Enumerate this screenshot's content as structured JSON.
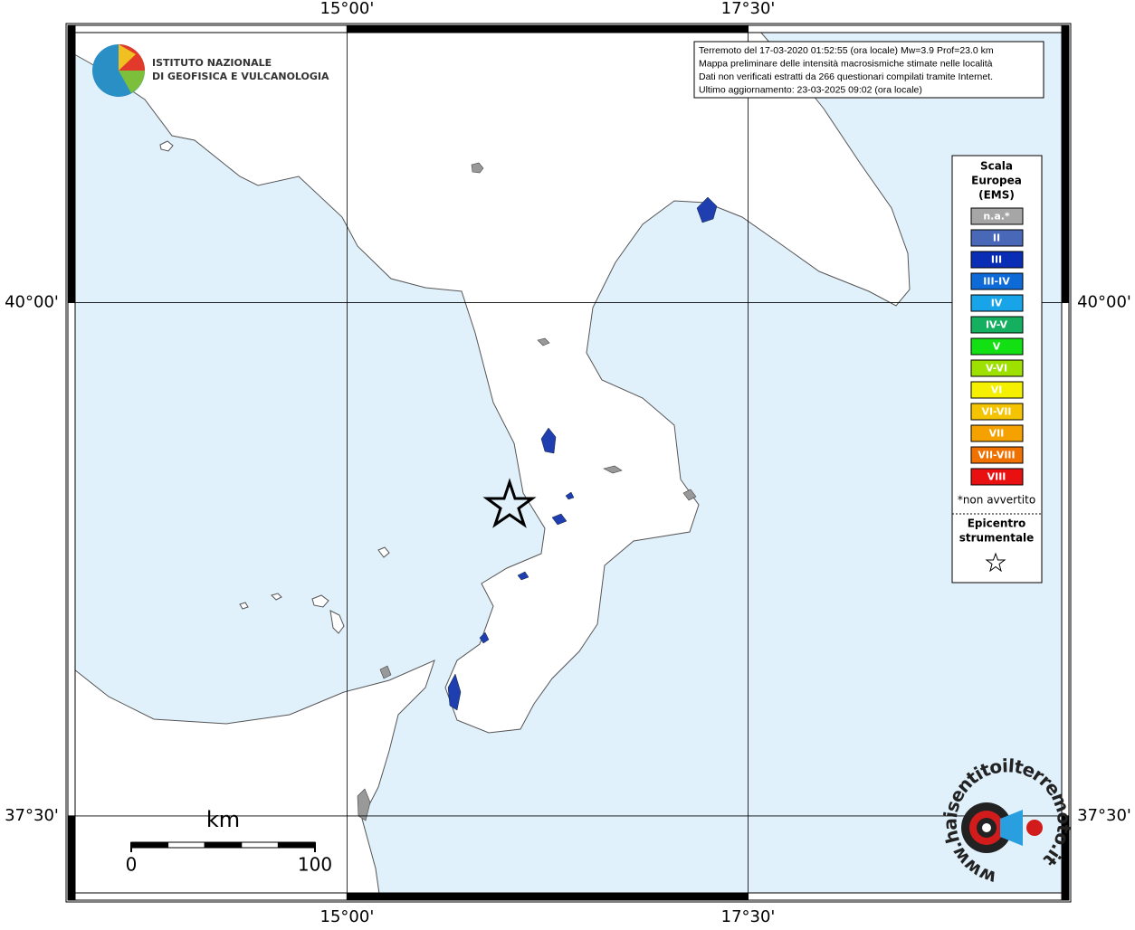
{
  "map": {
    "graticule": {
      "xlim": [
        13.26,
        19.5
      ],
      "ylim": [
        37.09,
        41.35
      ],
      "xticks": [
        {
          "value": 15,
          "label": "15°00'"
        },
        {
          "value": 17.5,
          "label": "17°30'"
        }
      ],
      "yticks": [
        {
          "value": 40,
          "label": "40°00'"
        },
        {
          "value": 37.5,
          "label": "37°30'"
        }
      ]
    },
    "info": [
      "Terremoto del 17-03-2020 01:52:55 (ora locale) Mw=3.9 Prof=23.0 km",
      "Mappa preliminare delle intensità macrosismiche stimate nelle località",
      "Dati non verificati estratti da 266 questionari compilati tramite Internet.",
      "Ultimo aggiornamento: 23-03-2025 09:02 (ora locale)"
    ],
    "institute": [
      "ISTITUTO NAZIONALE",
      "DI GEOFISICA E VULCANOLOGIA"
    ],
    "legend": {
      "title": [
        "Scala",
        "Europea",
        "(EMS)"
      ],
      "items": [
        {
          "label": "n.a.*",
          "color": "#a6a6a6"
        },
        {
          "label": "II",
          "color": "#4a68b8"
        },
        {
          "label": "III",
          "color": "#0a2db5"
        },
        {
          "label": "III-IV",
          "color": "#0e6ad6"
        },
        {
          "label": "IV",
          "color": "#18a4e8"
        },
        {
          "label": "IV-V",
          "color": "#14b060"
        },
        {
          "label": "V",
          "color": "#12e012"
        },
        {
          "label": "V-VI",
          "color": "#9ee000"
        },
        {
          "label": "VI",
          "color": "#f5f000"
        },
        {
          "label": "VI-VII",
          "color": "#f5c400"
        },
        {
          "label": "VII",
          "color": "#f5a200"
        },
        {
          "label": "VII-VIII",
          "color": "#f07000"
        },
        {
          "label": "VIII",
          "color": "#e81010"
        }
      ],
      "note": "*non avvertito",
      "epicenter": [
        "Epicentro",
        "strumentale"
      ]
    },
    "scale_bar": {
      "unit": "km",
      "ticks": [
        0,
        100
      ]
    },
    "badge": "www.haisentitoilterremoto.it"
  }
}
